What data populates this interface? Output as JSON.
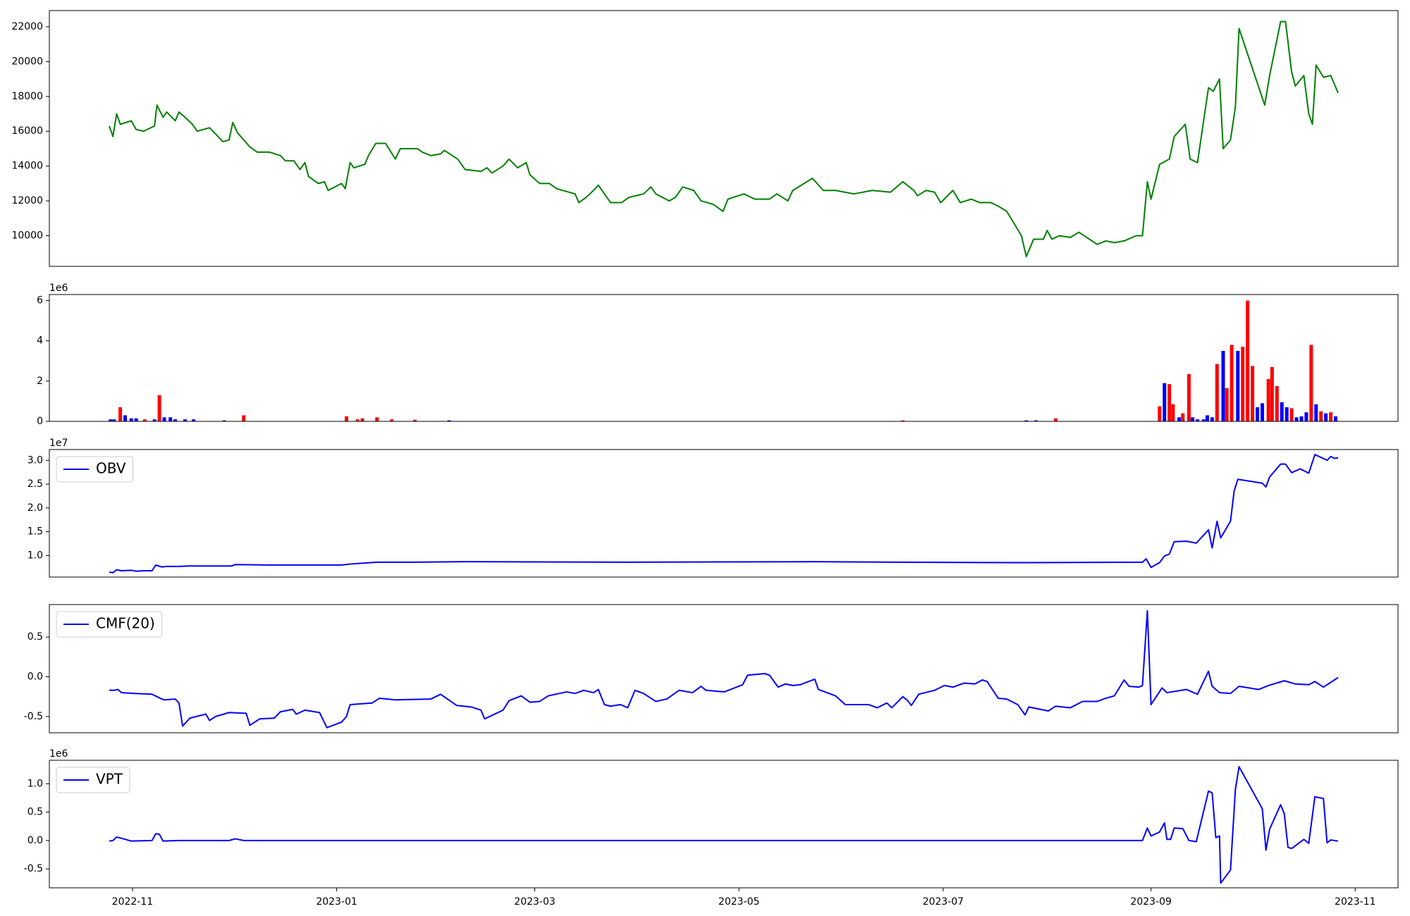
{
  "chart_data": [
    {
      "type": "line",
      "color": "#008000",
      "xlim": [
        2022.765,
        2023.868
      ],
      "ylim": [
        8240,
        22930
      ],
      "yticks": [
        10000,
        12000,
        14000,
        16000,
        18000,
        20000,
        22000
      ],
      "x": [
        2022.814,
        2022.817,
        2022.82,
        2022.823,
        2022.832,
        2022.836,
        2022.842,
        2022.851,
        2022.853,
        2022.858,
        2022.861,
        2022.868,
        2022.871,
        2022.876,
        2022.882,
        2022.886,
        2022.896,
        2022.907,
        2022.912,
        2022.915,
        2022.919,
        2022.929,
        2022.935,
        2022.945,
        2022.954,
        2022.958,
        2022.965,
        2022.97,
        2022.974,
        2022.977,
        2022.985,
        2022.99,
        2022.993,
        2023.004,
        2023.007,
        2023.011,
        2023.014,
        2023.023,
        2023.026,
        2023.032,
        2023.04,
        2023.048,
        2023.052,
        2023.066,
        2023.07,
        2023.077,
        2023.085,
        2023.088,
        2023.099,
        2023.105,
        2023.118,
        2023.123,
        2023.127,
        2023.136,
        2023.141,
        2023.148,
        2023.155,
        2023.158,
        2023.166,
        2023.174,
        2023.18,
        2023.195,
        2023.198,
        2023.204,
        2023.21,
        2023.214,
        2023.224,
        2023.233,
        2023.239,
        2023.251,
        2023.257,
        2023.261,
        2023.272,
        2023.277,
        2023.283,
        2023.292,
        2023.298,
        2023.308,
        2023.316,
        2023.32,
        2023.333,
        2023.342,
        2023.354,
        2023.36,
        2023.369,
        2023.373,
        2023.38,
        2023.389,
        2023.398,
        2023.408,
        2023.423,
        2023.438,
        2023.453,
        2023.463,
        2023.472,
        2023.475,
        2023.482,
        2023.489,
        2023.494,
        2023.504,
        2023.51,
        2023.519,
        2023.526,
        2023.535,
        2023.541,
        2023.548,
        2023.56,
        2023.564,
        2023.57,
        2023.578,
        2023.581,
        2023.585,
        2023.591,
        2023.6,
        2023.607,
        2023.622,
        2023.629,
        2023.636,
        2023.644,
        2023.654,
        2023.659,
        2023.663,
        2023.666,
        2023.673,
        2023.681,
        2023.685,
        2023.694,
        2023.698,
        2023.704,
        2023.713,
        2023.717,
        2023.722,
        2023.725,
        2023.731,
        2023.735,
        2023.738,
        2023.759,
        2023.763,
        2023.772,
        2023.776,
        2023.781,
        2023.784,
        2023.791,
        2023.795,
        2023.798,
        2023.801,
        2023.807,
        2023.813,
        2023.819
      ],
      "values": [
        16300,
        15700,
        17000,
        16400,
        16600,
        16100,
        16000,
        16300,
        17500,
        16800,
        17100,
        16600,
        17100,
        16800,
        16400,
        16000,
        16200,
        15400,
        15500,
        16500,
        15900,
        15100,
        14800,
        14800,
        14600,
        14300,
        14300,
        13800,
        14200,
        13400,
        13000,
        13100,
        12600,
        13000,
        12700,
        14200,
        13900,
        14100,
        14600,
        15300,
        15300,
        14400,
        15000,
        15000,
        14800,
        14600,
        14700,
        14900,
        14400,
        13800,
        13700,
        13900,
        13600,
        14000,
        14400,
        13900,
        14200,
        13500,
        13000,
        13000,
        12700,
        12400,
        11900,
        12200,
        12600,
        12900,
        11900,
        11900,
        12200,
        12400,
        12800,
        12400,
        12000,
        12200,
        12800,
        12600,
        12000,
        11800,
        11400,
        12100,
        12400,
        12100,
        12100,
        12400,
        12000,
        12600,
        12900,
        13300,
        12600,
        12600,
        12400,
        12600,
        12500,
        13100,
        12600,
        12300,
        12600,
        12500,
        11900,
        12600,
        11900,
        12100,
        11900,
        11900,
        11700,
        11400,
        10000,
        8800,
        9800,
        9800,
        10300,
        9800,
        10000,
        9900,
        10200,
        9500,
        9700,
        9600,
        9700,
        10000,
        10000,
        13100,
        12100,
        14100,
        14400,
        15700,
        16400,
        14400,
        14200,
        18500,
        18300,
        19000,
        15000,
        15500,
        17400,
        21900,
        17500,
        19200,
        22300,
        22300,
        19400,
        18600,
        19200,
        17000,
        16400,
        19800,
        19100,
        19200,
        18200
      ]
    },
    {
      "type": "bar",
      "offset_text": "1e6",
      "xlim": [
        2022.765,
        2023.868
      ],
      "ylim": [
        0,
        6.3
      ],
      "yticks": [
        0,
        2,
        4,
        6
      ],
      "x": [
        2022.815,
        2022.818,
        2022.823,
        2022.827,
        2022.832,
        2022.836,
        2022.843,
        2022.851,
        2022.855,
        2022.859,
        2022.864,
        2022.868,
        2022.876,
        2022.883,
        2022.908,
        2022.924,
        2023.008,
        2023.017,
        2023.021,
        2023.033,
        2023.045,
        2023.064,
        2023.092,
        2023.463,
        2023.564,
        2023.572,
        2023.588,
        2023.673,
        2023.677,
        2023.681,
        2023.684,
        2023.689,
        2023.692,
        2023.697,
        2023.7,
        2023.704,
        2023.709,
        2023.712,
        2023.716,
        2023.72,
        2023.725,
        2023.728,
        2023.732,
        2023.737,
        2023.741,
        2023.745,
        2023.749,
        2023.753,
        2023.757,
        2023.762,
        2023.765,
        2023.769,
        2023.773,
        2023.777,
        2023.781,
        2023.785,
        2023.789,
        2023.793,
        2023.797,
        2023.801,
        2023.805,
        2023.809,
        2023.813,
        2023.817
      ],
      "values": [
        0.1,
        0.1,
        0.7,
        0.3,
        0.15,
        0.15,
        0.1,
        0.1,
        1.3,
        0.2,
        0.2,
        0.1,
        0.1,
        0.1,
        0.05,
        0.3,
        0.25,
        0.1,
        0.15,
        0.2,
        0.1,
        0.08,
        0.05,
        0.05,
        0.05,
        0.05,
        0.15,
        0.75,
        1.9,
        1.85,
        0.85,
        0.2,
        0.4,
        2.35,
        0.2,
        0.1,
        0.1,
        0.3,
        0.2,
        2.85,
        3.5,
        1.65,
        3.8,
        3.5,
        3.7,
        6.0,
        2.75,
        0.7,
        0.9,
        2.1,
        2.7,
        1.75,
        0.95,
        0.7,
        0.65,
        0.2,
        0.25,
        0.45,
        3.8,
        0.85,
        0.5,
        0.4,
        0.45,
        0.25
      ],
      "colors": [
        "#0000ff",
        "#0000ff",
        "#ff0000",
        "#0000ff",
        "#0000ff",
        "#0000ff",
        "#ff0000",
        "#0000ff",
        "#ff0000",
        "#0000ff",
        "#0000ff",
        "#0000ff",
        "#0000ff",
        "#0000ff",
        "#0000ff",
        "#ff0000",
        "#ff0000",
        "#ff0000",
        "#ff0000",
        "#ff0000",
        "#ff0000",
        "#ff0000",
        "#0000ff",
        "#ff0000",
        "#0000ff",
        "#0000ff",
        "#ff0000",
        "#ff0000",
        "#0000ff",
        "#ff0000",
        "#ff0000",
        "#0000ff",
        "#ff0000",
        "#ff0000",
        "#0000ff",
        "#0000ff",
        "#0000ff",
        "#0000ff",
        "#0000ff",
        "#ff0000",
        "#0000ff",
        "#ff0000",
        "#ff0000",
        "#0000ff",
        "#ff0000",
        "#ff0000",
        "#ff0000",
        "#0000ff",
        "#0000ff",
        "#ff0000",
        "#ff0000",
        "#ff0000",
        "#0000ff",
        "#0000ff",
        "#ff0000",
        "#0000ff",
        "#0000ff",
        "#0000ff",
        "#ff0000",
        "#0000ff",
        "#ff0000",
        "#0000ff",
        "#ff0000",
        "#0000ff"
      ]
    },
    {
      "type": "line",
      "offset_text": "1e7",
      "legend": "upper left",
      "xlim": [
        2022.765,
        2023.868
      ],
      "ylim": [
        0.547,
        3.226
      ],
      "yticks": [
        {
          "value": 1.0,
          "label": "1.0"
        },
        1.5,
        {
          "value": 2.0,
          "label": "2.0"
        },
        2.5,
        {
          "value": 3.0,
          "label": "3.0"
        }
      ],
      "x": [
        2022.814,
        2022.817,
        2022.82,
        2022.824,
        2022.832,
        2022.836,
        2022.842,
        2022.849,
        2022.852,
        2022.857,
        2022.861,
        2022.871,
        2022.879,
        2022.893,
        2022.914,
        2022.917,
        2022.945,
        2023.004,
        2023.011,
        2023.033,
        2023.063,
        2023.107,
        2023.239,
        2023.386,
        2023.46,
        2023.563,
        2023.659,
        2023.662,
        2023.666,
        2023.673,
        2023.677,
        2023.681,
        2023.685,
        2023.695,
        2023.703,
        2023.713,
        2023.716,
        2023.72,
        2023.723,
        2023.731,
        2023.734,
        2023.737,
        2023.757,
        2023.76,
        2023.763,
        2023.772,
        2023.776,
        2023.781,
        2023.788,
        2023.795,
        2023.8,
        2023.806,
        2023.81,
        2023.813,
        2023.816,
        2023.819
      ],
      "series": [
        {
          "name": "OBV",
          "color": "#0000ff",
          "values": [
            0.65,
            0.64,
            0.7,
            0.68,
            0.69,
            0.67,
            0.68,
            0.68,
            0.8,
            0.76,
            0.77,
            0.77,
            0.78,
            0.78,
            0.78,
            0.81,
            0.8,
            0.8,
            0.82,
            0.86,
            0.86,
            0.87,
            0.86,
            0.87,
            0.86,
            0.85,
            0.86,
            0.93,
            0.75,
            0.85,
            0.99,
            1.03,
            1.29,
            1.3,
            1.26,
            1.54,
            1.16,
            1.72,
            1.37,
            1.72,
            2.36,
            2.6,
            2.52,
            2.44,
            2.65,
            2.92,
            2.92,
            2.74,
            2.82,
            2.73,
            3.12,
            3.05,
            3.0,
            3.08,
            3.04,
            3.05
          ]
        }
      ]
    },
    {
      "type": "line",
      "legend": "upper left",
      "xlim": [
        2022.765,
        2023.868
      ],
      "ylim": [
        -0.705,
        0.909
      ],
      "yticks": [
        -0.5,
        {
          "value": 0.0,
          "label": "0.0"
        },
        0.5
      ],
      "x": [
        2022.814,
        2022.818,
        2022.821,
        2022.824,
        2022.834,
        2022.849,
        2022.857,
        2022.859,
        2022.868,
        2022.871,
        2022.874,
        2022.88,
        2022.893,
        2022.896,
        2022.901,
        2022.912,
        2022.926,
        2022.929,
        2022.937,
        2022.949,
        2022.954,
        2022.964,
        2022.967,
        2022.974,
        2022.986,
        2022.992,
        2023.004,
        2023.008,
        2023.011,
        2023.029,
        2023.035,
        2023.048,
        2023.077,
        2023.085,
        2023.098,
        2023.11,
        2023.118,
        2023.121,
        2023.136,
        2023.141,
        2023.151,
        2023.158,
        2023.166,
        2023.173,
        2023.188,
        2023.195,
        2023.202,
        2023.21,
        2023.214,
        2023.219,
        2023.224,
        2023.232,
        2023.238,
        2023.244,
        2023.251,
        2023.261,
        2023.27,
        2023.28,
        2023.291,
        2023.298,
        2023.302,
        2023.317,
        2023.332,
        2023.336,
        2023.35,
        2023.354,
        2023.361,
        2023.367,
        2023.373,
        2023.379,
        2023.391,
        2023.394,
        2023.408,
        2023.416,
        2023.435,
        2023.442,
        2023.45,
        2023.454,
        2023.463,
        2023.467,
        2023.47,
        2023.476,
        2023.489,
        2023.497,
        2023.504,
        2023.513,
        2023.522,
        2023.528,
        2023.532,
        2023.541,
        2023.548,
        2023.557,
        2023.563,
        2023.566,
        2023.582,
        2023.588,
        2023.6,
        2023.61,
        2023.622,
        2023.629,
        2023.636,
        2023.644,
        2023.648,
        2023.656,
        2023.659,
        2023.663,
        2023.666,
        2023.675,
        2023.679,
        2023.695,
        2023.704,
        2023.713,
        2023.716,
        2023.722,
        2023.731,
        2023.738,
        2023.754,
        2023.762,
        2023.775,
        2023.784,
        2023.795,
        2023.8,
        2023.807,
        2023.813,
        2023.819
      ],
      "series": [
        {
          "name": "CMF(20)",
          "color": "#0000ff",
          "values": [
            -0.17,
            -0.17,
            -0.16,
            -0.2,
            -0.21,
            -0.22,
            -0.28,
            -0.29,
            -0.28,
            -0.33,
            -0.62,
            -0.52,
            -0.47,
            -0.55,
            -0.5,
            -0.45,
            -0.46,
            -0.61,
            -0.53,
            -0.52,
            -0.44,
            -0.41,
            -0.47,
            -0.42,
            -0.45,
            -0.64,
            -0.57,
            -0.5,
            -0.35,
            -0.33,
            -0.27,
            -0.29,
            -0.28,
            -0.22,
            -0.36,
            -0.38,
            -0.42,
            -0.53,
            -0.42,
            -0.3,
            -0.24,
            -0.32,
            -0.31,
            -0.24,
            -0.19,
            -0.21,
            -0.17,
            -0.2,
            -0.16,
            -0.35,
            -0.37,
            -0.35,
            -0.39,
            -0.17,
            -0.21,
            -0.31,
            -0.28,
            -0.17,
            -0.2,
            -0.12,
            -0.17,
            -0.19,
            -0.1,
            0.02,
            0.04,
            0.02,
            -0.13,
            -0.09,
            -0.11,
            -0.1,
            -0.03,
            -0.16,
            -0.24,
            -0.35,
            -0.35,
            -0.39,
            -0.33,
            -0.39,
            -0.25,
            -0.3,
            -0.36,
            -0.22,
            -0.17,
            -0.11,
            -0.13,
            -0.08,
            -0.09,
            -0.04,
            -0.06,
            -0.27,
            -0.28,
            -0.35,
            -0.48,
            -0.38,
            -0.43,
            -0.37,
            -0.39,
            -0.31,
            -0.31,
            -0.27,
            -0.24,
            -0.04,
            -0.12,
            -0.13,
            -0.11,
            0.83,
            -0.35,
            -0.14,
            -0.2,
            -0.16,
            -0.22,
            0.07,
            -0.12,
            -0.2,
            -0.21,
            -0.12,
            -0.16,
            -0.11,
            -0.05,
            -0.09,
            -0.1,
            -0.06,
            -0.13,
            -0.07,
            -0.01
          ]
        }
      ]
    },
    {
      "type": "line",
      "offset_text": "1e6",
      "legend": "upper left",
      "xlim": [
        2022.765,
        2023.868
      ],
      "ylim": [
        -0.833,
        1.413
      ],
      "yticks": [
        -0.5,
        {
          "value": 0.0,
          "label": "0.0"
        },
        0.5,
        {
          "value": 1.0,
          "label": "1.0"
        }
      ],
      "xticks": [
        {
          "value": 2022.833,
          "label": "2022-11"
        },
        {
          "value": 2023.0,
          "label": "2023-01"
        },
        {
          "value": 2023.162,
          "label": "2023-03"
        },
        {
          "value": 2023.329,
          "label": "2023-05"
        },
        {
          "value": 2023.496,
          "label": "2023-07"
        },
        {
          "value": 2023.666,
          "label": "2023-09"
        },
        {
          "value": 2023.833,
          "label": "2023-11"
        }
      ],
      "x": [
        2022.814,
        2022.817,
        2022.82,
        2022.824,
        2022.832,
        2022.849,
        2022.852,
        2022.855,
        2022.858,
        2022.871,
        2022.912,
        2022.917,
        2022.924,
        2023.018,
        2023.659,
        2023.663,
        2023.666,
        2023.673,
        2023.677,
        2023.679,
        2023.682,
        2023.685,
        2023.692,
        2023.697,
        2023.703,
        2023.713,
        2023.716,
        2023.719,
        2023.722,
        2023.723,
        2023.731,
        2023.735,
        2023.738,
        2023.757,
        2023.76,
        2023.763,
        2023.772,
        2023.775,
        2023.778,
        2023.781,
        2023.791,
        2023.795,
        2023.8,
        2023.807,
        2023.81,
        2023.813,
        2023.819
      ],
      "series": [
        {
          "name": "VPT",
          "color": "#0000ff",
          "values": [
            -0.01,
            0.0,
            0.06,
            0.04,
            -0.01,
            0.0,
            0.12,
            0.11,
            -0.01,
            0.0,
            0.0,
            0.03,
            0.0,
            0.0,
            0.0,
            0.22,
            0.08,
            0.15,
            0.31,
            0.02,
            0.02,
            0.22,
            0.21,
            0.0,
            -0.02,
            0.87,
            0.84,
            0.05,
            0.08,
            -0.75,
            -0.52,
            0.9,
            1.3,
            0.56,
            -0.17,
            0.2,
            0.63,
            0.47,
            -0.12,
            -0.14,
            0.02,
            -0.05,
            0.77,
            0.74,
            -0.04,
            0.01,
            -0.01
          ]
        }
      ]
    }
  ]
}
